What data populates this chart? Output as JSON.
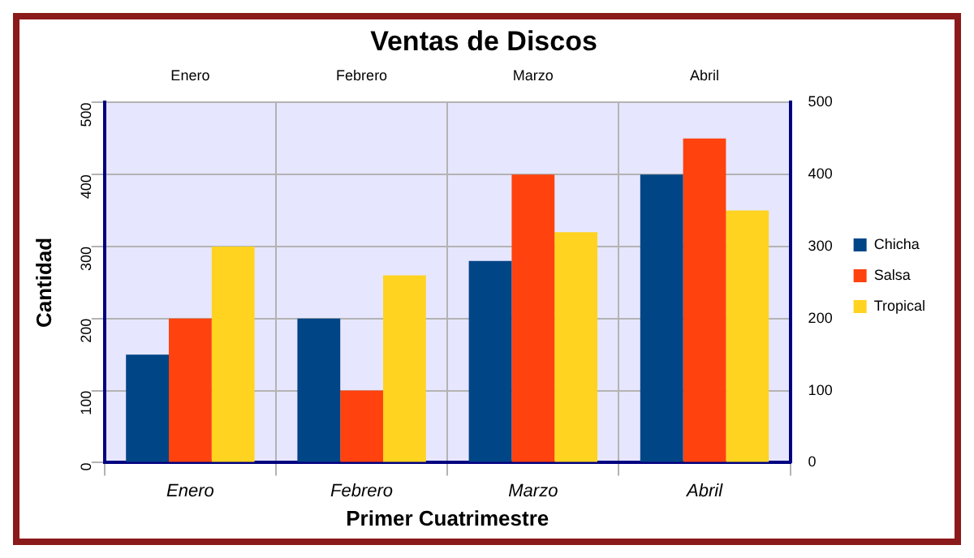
{
  "chart_data": {
    "type": "bar",
    "title": "Ventas de Discos",
    "xlabel": "Primer Cuatrimestre",
    "ylabel": "Cantidad",
    "categories": [
      "Enero",
      "Febrero",
      "Marzo",
      "Abril"
    ],
    "series": [
      {
        "name": "Chicha",
        "color": "#004586",
        "values": [
          150,
          200,
          280,
          400
        ]
      },
      {
        "name": "Salsa",
        "color": "#ff420e",
        "values": [
          200,
          100,
          400,
          450
        ]
      },
      {
        "name": "Tropical",
        "color": "#ffd320",
        "values": [
          300,
          260,
          320,
          350
        ]
      }
    ],
    "ylim": [
      0,
      500
    ],
    "yticks": [
      0,
      100,
      200,
      300,
      400,
      500
    ],
    "y2lim": [
      0,
      500
    ],
    "y2ticks": [
      0,
      100,
      200,
      300,
      400,
      500
    ],
    "grid": true,
    "legend": "right"
  }
}
